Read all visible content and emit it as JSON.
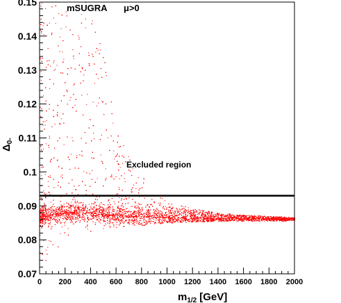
{
  "chart_data": {
    "type": "scatter",
    "title_left": "mSUGRA",
    "title_right": "μ>0",
    "xlabel": "m",
    "xlabel_sub": "1/2",
    "xlabel_unit": "[GeV]",
    "ylabel": "Δ",
    "ylabel_sub": "0-",
    "annotation": "Excluded region",
    "xlim": [
      0,
      2000
    ],
    "ylim": [
      0.07,
      0.15
    ],
    "x_ticks": [
      0,
      200,
      400,
      600,
      800,
      1000,
      1200,
      1400,
      1600,
      1800,
      2000
    ],
    "y_ticks": [
      0.07,
      0.08,
      0.09,
      0.1,
      0.11,
      0.12,
      0.13,
      0.14,
      0.15
    ],
    "threshold": 0.093,
    "point_color": "#ff0000",
    "line_color": "#000000",
    "series": [
      {
        "envelope_x": [
          0,
          50,
          100,
          150,
          200,
          250,
          300,
          350,
          400,
          450,
          500,
          550,
          600,
          650,
          700,
          750,
          800,
          850,
          900,
          1000,
          1100,
          1200,
          1300,
          1400,
          1500,
          1600,
          1700,
          1800,
          1900,
          2000
        ],
        "upper": [
          0.15,
          0.15,
          0.15,
          0.15,
          0.15,
          0.15,
          0.15,
          0.15,
          0.15,
          0.145,
          0.135,
          0.125,
          0.117,
          0.111,
          0.106,
          0.102,
          0.099,
          0.097,
          0.095,
          0.0925,
          0.0908,
          0.0895,
          0.0886,
          0.0881,
          0.0877,
          0.0874,
          0.0872,
          0.087,
          0.0869,
          0.0868
        ],
        "lower": [
          0.07,
          0.072,
          0.075,
          0.077,
          0.0785,
          0.0795,
          0.08,
          0.0805,
          0.0812,
          0.0818,
          0.0822,
          0.0827,
          0.0832,
          0.0835,
          0.0838,
          0.084,
          0.0843,
          0.0845,
          0.0847,
          0.085,
          0.0852,
          0.0853,
          0.0854,
          0.0855,
          0.0856,
          0.0856,
          0.0856,
          0.0856,
          0.0856,
          0.0856
        ],
        "core_center": [
          0.087,
          0.087,
          0.0875,
          0.0878,
          0.088,
          0.0882,
          0.0883,
          0.0882,
          0.088,
          0.0878,
          0.0876,
          0.0874,
          0.0873,
          0.0872,
          0.0871,
          0.087,
          0.0869,
          0.0868,
          0.0867,
          0.0866,
          0.0865,
          0.0864,
          0.0864,
          0.0863,
          0.0863,
          0.0862,
          0.0862,
          0.0862,
          0.0862,
          0.0862
        ]
      }
    ]
  }
}
